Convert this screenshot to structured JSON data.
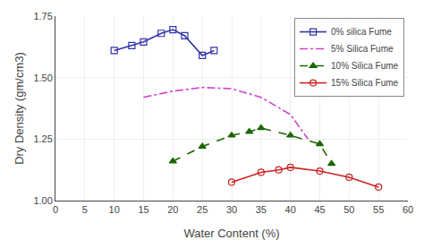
{
  "chart_data": {
    "type": "line",
    "xlabel": "Water Content (%)",
    "ylabel": "Dry Density (gm/cm3)",
    "series": [
      {
        "name": "0% silica Fume",
        "color": "#3333AA",
        "line_style": "solid",
        "marker": "square-open",
        "x": [
          10,
          13,
          15,
          18,
          20,
          22,
          25,
          27
        ],
        "values": [
          1.61,
          1.63,
          1.645,
          1.68,
          1.695,
          1.67,
          1.59,
          1.61
        ]
      },
      {
        "name": "5% Silica Fume",
        "color": "#CC44CC",
        "line_style": "dashdot",
        "marker": "none",
        "x": [
          15,
          20,
          25,
          30,
          35,
          40,
          43
        ],
        "values": [
          1.42,
          1.445,
          1.46,
          1.455,
          1.42,
          1.35,
          1.25
        ]
      },
      {
        "name": "10% Silica Fume",
        "color": "#1A6600",
        "line_style": "dash",
        "marker": "triangle-up",
        "x": [
          20,
          25,
          30,
          33,
          35,
          40,
          45,
          47
        ],
        "values": [
          1.16,
          1.22,
          1.265,
          1.28,
          1.295,
          1.265,
          1.23,
          1.15
        ]
      },
      {
        "name": "15% Silica Fume",
        "color": "#CC2222",
        "line_style": "solid",
        "marker": "circle-open",
        "x": [
          30,
          35,
          38,
          40,
          45,
          50,
          55
        ],
        "values": [
          1.075,
          1.115,
          1.125,
          1.135,
          1.12,
          1.095,
          1.055
        ]
      }
    ],
    "xlim": [
      0,
      60
    ],
    "ylim": [
      1.0,
      1.75
    ],
    "xticks": [
      0,
      5,
      10,
      15,
      20,
      25,
      30,
      35,
      40,
      45,
      50,
      55,
      60
    ],
    "yticks": [
      {
        "value": 1.0,
        "label": "1.00"
      },
      1.25,
      {
        "value": 1.5,
        "label": "1.50"
      },
      1.75
    ],
    "grid": true,
    "legend": "upper right"
  }
}
